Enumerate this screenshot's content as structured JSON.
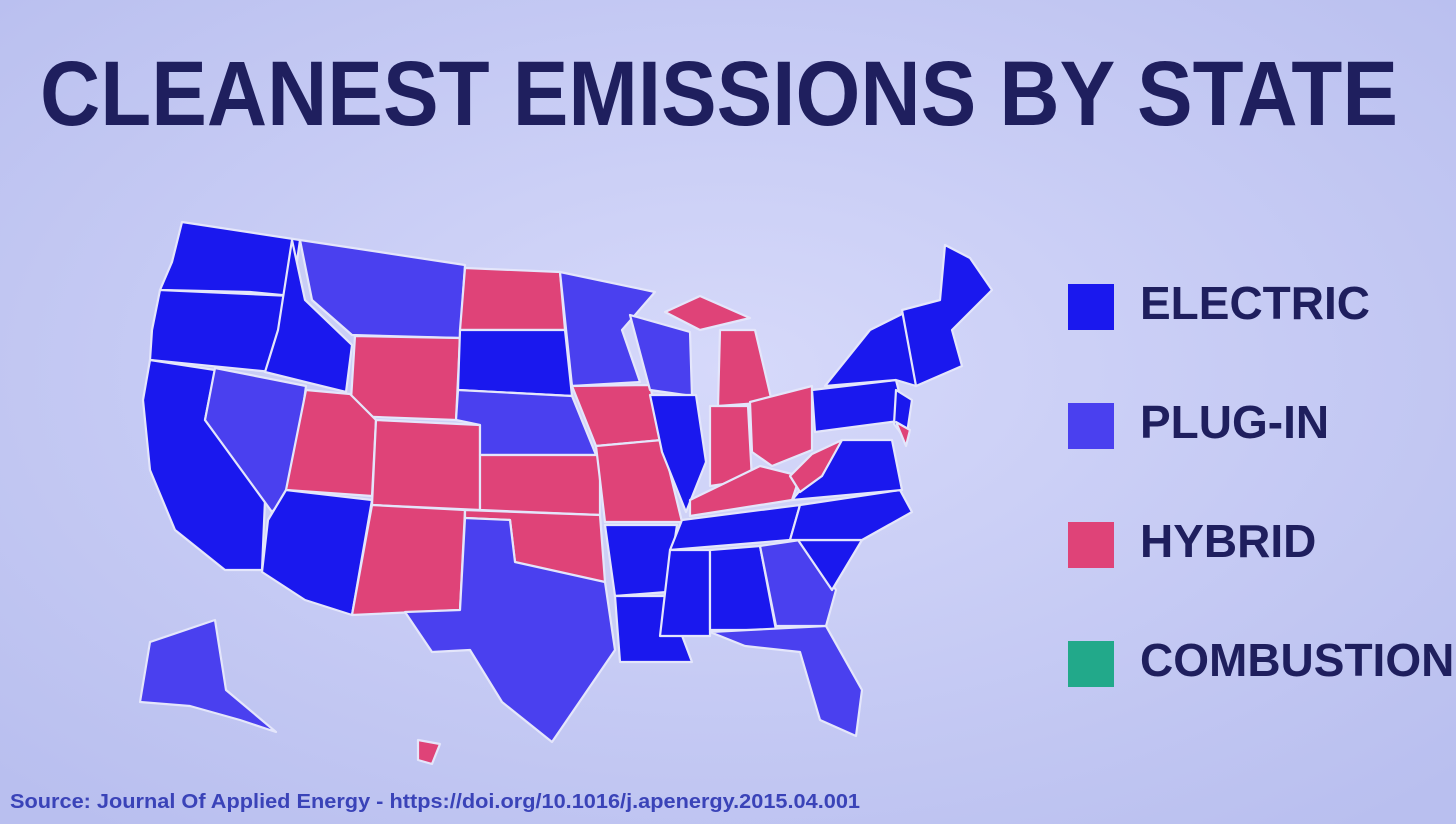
{
  "title": "CLEANEST EMISSIONS BY STATE",
  "legend": {
    "items": [
      {
        "label": "ELECTRIC",
        "color": "#1a18ee"
      },
      {
        "label": "PLUG-IN",
        "color": "#4a40ef"
      },
      {
        "label": "HYBRID",
        "color": "#df4378"
      },
      {
        "label": "COMBUSTION",
        "color": "#22a98a"
      }
    ]
  },
  "source": "Source: Journal Of Applied Energy - https://doi.org/10.1016/j.apenergy.2015.04.001"
}
